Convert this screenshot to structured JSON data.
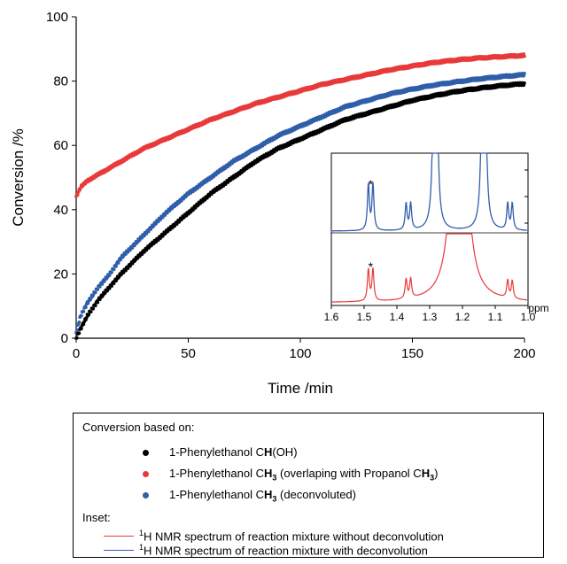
{
  "chart_data": [
    {
      "type": "scatter",
      "xlabel": "Time /min",
      "ylabel": "Conversion /%",
      "xlim": [
        0,
        200
      ],
      "ylim": [
        0,
        100
      ],
      "xticks": [
        "0",
        "50",
        "100",
        "150",
        "200"
      ],
      "yticks": [
        "0",
        "20",
        "40",
        "60",
        "80",
        "100"
      ],
      "grid": false,
      "series": [
        {
          "name": "1-Phenylethanol CH(OH)",
          "color": "#000000",
          "x": [
            0,
            2,
            5,
            10,
            15,
            20,
            30,
            40,
            50,
            60,
            70,
            80,
            90,
            100,
            110,
            120,
            130,
            140,
            150,
            160,
            170,
            180,
            190,
            200
          ],
          "y": [
            0,
            3,
            7,
            12,
            16,
            20,
            27,
            33,
            39,
            45,
            50,
            55,
            59,
            62,
            65,
            68,
            70,
            72,
            74,
            75.5,
            76.8,
            77.8,
            78.6,
            79.2
          ]
        },
        {
          "name": "1-Phenylethanol CH3 (overlaping with Propanol CH3)",
          "color": "#e8393b",
          "x": [
            0,
            2,
            5,
            10,
            20,
            30,
            40,
            50,
            60,
            70,
            80,
            90,
            100,
            110,
            120,
            130,
            140,
            150,
            160,
            170,
            180,
            190,
            200
          ],
          "y": [
            44,
            47,
            49,
            51,
            55,
            59,
            62,
            65,
            68,
            70.5,
            73,
            75,
            77,
            79,
            80.5,
            82,
            83.5,
            84.7,
            85.8,
            86.6,
            87.2,
            87.6,
            88
          ]
        },
        {
          "name": "1-Phenylethanol CH3 (deconvoluted)",
          "color": "#2f5eaa",
          "x": [
            0,
            2,
            5,
            10,
            15,
            20,
            30,
            40,
            50,
            60,
            70,
            80,
            90,
            100,
            110,
            120,
            130,
            140,
            150,
            160,
            170,
            180,
            190,
            200
          ],
          "y": [
            2,
            7,
            11,
            16,
            20,
            25,
            32,
            39,
            45,
            50,
            55,
            59,
            63,
            66,
            69,
            72,
            74,
            76,
            77.5,
            78.8,
            79.8,
            80.7,
            81.4,
            82
          ]
        }
      ]
    },
    {
      "type": "line",
      "xlabel": "ppm",
      "xlim": [
        1.6,
        1.0
      ],
      "xticks": [
        "1.6",
        "1.5",
        "1.4",
        "1.3",
        "1.2",
        "1.1",
        "1.0"
      ],
      "annotations": [
        "*",
        "*"
      ],
      "series": [
        {
          "name": "1H NMR spectrum of reaction mixture with deconvolution",
          "color": "#2f5eaa"
        },
        {
          "name": "1H NMR spectrum of reaction mixture without deconvolution",
          "color": "#e8393b"
        }
      ]
    }
  ],
  "legend": {
    "heading": "Conversion based on:",
    "items": [
      {
        "color": "#000000",
        "parts": [
          "1-Phenylethanol C",
          "H",
          "(OH)"
        ]
      },
      {
        "color": "#e8393b",
        "parts": [
          "1-Phenylethanol C",
          "H",
          "3",
          " (overlaping with Propanol C",
          "H",
          "3",
          ")"
        ]
      },
      {
        "color": "#2f5eaa",
        "parts": [
          "1-Phenylethanol C",
          "H",
          "3",
          " (deconvoluted)"
        ]
      }
    ],
    "inset_heading": "Inset:",
    "inset_items": [
      {
        "color": "#e8393b",
        "sup": "1",
        "text": "H NMR spectrum of reaction mixture without deconvolution"
      },
      {
        "color": "#2f5eaa",
        "sup": "1",
        "text": "H NMR spectrum of reaction mixture with deconvolution"
      }
    ]
  }
}
